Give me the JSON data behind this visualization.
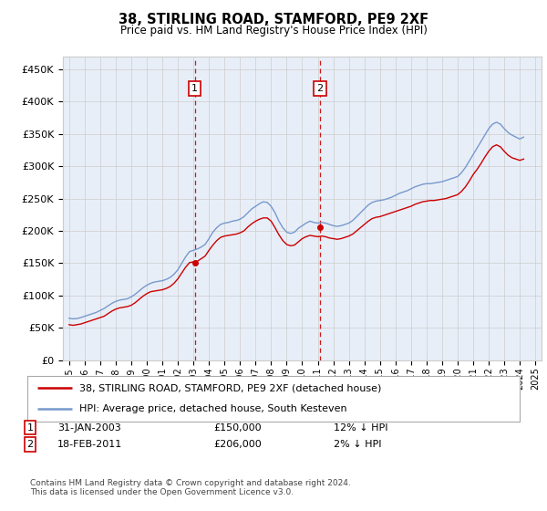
{
  "title": "38, STIRLING ROAD, STAMFORD, PE9 2XF",
  "subtitle": "Price paid vs. HM Land Registry's House Price Index (HPI)",
  "ylabel_ticks": [
    "£0",
    "£50K",
    "£100K",
    "£150K",
    "£200K",
    "£250K",
    "£300K",
    "£350K",
    "£400K",
    "£450K"
  ],
  "ytick_values": [
    0,
    50000,
    100000,
    150000,
    200000,
    250000,
    300000,
    350000,
    400000,
    450000
  ],
  "ylim": [
    0,
    470000
  ],
  "xlim_start": 1994.6,
  "xlim_end": 2025.4,
  "background_color": "#ffffff",
  "plot_bg_color": "#e8eef8",
  "grid_color": "#cccccc",
  "legend_label_red": "38, STIRLING ROAD, STAMFORD, PE9 2XF (detached house)",
  "legend_label_blue": "HPI: Average price, detached house, South Kesteven",
  "sale1_x": 2003.083,
  "sale1_y": 150000,
  "sale1_label": "1",
  "sale2_x": 2011.13,
  "sale2_y": 206000,
  "sale2_label": "2",
  "footer": "Contains HM Land Registry data © Crown copyright and database right 2024.\nThis data is licensed under the Open Government Licence v3.0.",
  "hpi_color": "#7799cc",
  "price_color": "#cc0000",
  "marker_box_color": "#cc0000",
  "hpi_data": {
    "years": [
      1995.0,
      1995.25,
      1995.5,
      1995.75,
      1996.0,
      1996.25,
      1996.5,
      1996.75,
      1997.0,
      1997.25,
      1997.5,
      1997.75,
      1998.0,
      1998.25,
      1998.5,
      1998.75,
      1999.0,
      1999.25,
      1999.5,
      1999.75,
      2000.0,
      2000.25,
      2000.5,
      2000.75,
      2001.0,
      2001.25,
      2001.5,
      2001.75,
      2002.0,
      2002.25,
      2002.5,
      2002.75,
      2003.0,
      2003.25,
      2003.5,
      2003.75,
      2004.0,
      2004.25,
      2004.5,
      2004.75,
      2005.0,
      2005.25,
      2005.5,
      2005.75,
      2006.0,
      2006.25,
      2006.5,
      2006.75,
      2007.0,
      2007.25,
      2007.5,
      2007.75,
      2008.0,
      2008.25,
      2008.5,
      2008.75,
      2009.0,
      2009.25,
      2009.5,
      2009.75,
      2010.0,
      2010.25,
      2010.5,
      2010.75,
      2011.0,
      2011.25,
      2011.5,
      2011.75,
      2012.0,
      2012.25,
      2012.5,
      2012.75,
      2013.0,
      2013.25,
      2013.5,
      2013.75,
      2014.0,
      2014.25,
      2014.5,
      2014.75,
      2015.0,
      2015.25,
      2015.5,
      2015.75,
      2016.0,
      2016.25,
      2016.5,
      2016.75,
      2017.0,
      2017.25,
      2017.5,
      2017.75,
      2018.0,
      2018.25,
      2018.5,
      2018.75,
      2019.0,
      2019.25,
      2019.5,
      2019.75,
      2020.0,
      2020.25,
      2020.5,
      2020.75,
      2021.0,
      2021.25,
      2021.5,
      2021.75,
      2022.0,
      2022.25,
      2022.5,
      2022.75,
      2023.0,
      2023.25,
      2023.5,
      2023.75,
      2024.0,
      2024.25
    ],
    "values": [
      65000,
      64000,
      64500,
      66000,
      68000,
      70000,
      72000,
      74000,
      77000,
      80000,
      84000,
      88000,
      91000,
      93000,
      94000,
      95000,
      98000,
      102000,
      107000,
      112000,
      116000,
      119000,
      121000,
      122000,
      123000,
      125000,
      128000,
      133000,
      140000,
      150000,
      160000,
      168000,
      170000,
      172000,
      175000,
      179000,
      188000,
      198000,
      205000,
      210000,
      212000,
      213000,
      215000,
      216000,
      218000,
      222000,
      228000,
      234000,
      238000,
      242000,
      245000,
      244000,
      238000,
      228000,
      215000,
      205000,
      198000,
      196000,
      198000,
      204000,
      208000,
      212000,
      215000,
      213000,
      212000,
      213000,
      212000,
      210000,
      208000,
      207000,
      208000,
      210000,
      212000,
      216000,
      222000,
      228000,
      234000,
      240000,
      244000,
      246000,
      247000,
      248000,
      250000,
      252000,
      255000,
      258000,
      260000,
      262000,
      265000,
      268000,
      270000,
      272000,
      273000,
      273000,
      274000,
      275000,
      276000,
      278000,
      280000,
      282000,
      284000,
      290000,
      298000,
      308000,
      318000,
      328000,
      338000,
      348000,
      358000,
      365000,
      368000,
      365000,
      358000,
      352000,
      348000,
      345000,
      342000,
      345000
    ]
  },
  "price_data": {
    "years": [
      1995.0,
      1995.25,
      1995.5,
      1995.75,
      1996.0,
      1996.25,
      1996.5,
      1996.75,
      1997.0,
      1997.25,
      1997.5,
      1997.75,
      1998.0,
      1998.25,
      1998.5,
      1998.75,
      1999.0,
      1999.25,
      1999.5,
      1999.75,
      2000.0,
      2000.25,
      2000.5,
      2000.75,
      2001.0,
      2001.25,
      2001.5,
      2001.75,
      2002.0,
      2002.25,
      2002.5,
      2002.75,
      2003.0,
      2003.25,
      2003.5,
      2003.75,
      2004.0,
      2004.25,
      2004.5,
      2004.75,
      2005.0,
      2005.25,
      2005.5,
      2005.75,
      2006.0,
      2006.25,
      2006.5,
      2006.75,
      2007.0,
      2007.25,
      2007.5,
      2007.75,
      2008.0,
      2008.25,
      2008.5,
      2008.75,
      2009.0,
      2009.25,
      2009.5,
      2009.75,
      2010.0,
      2010.25,
      2010.5,
      2010.75,
      2011.0,
      2011.25,
      2011.5,
      2011.75,
      2012.0,
      2012.25,
      2012.5,
      2012.75,
      2013.0,
      2013.25,
      2013.5,
      2013.75,
      2014.0,
      2014.25,
      2014.5,
      2014.75,
      2015.0,
      2015.25,
      2015.5,
      2015.75,
      2016.0,
      2016.25,
      2016.5,
      2016.75,
      2017.0,
      2017.25,
      2017.5,
      2017.75,
      2018.0,
      2018.25,
      2018.5,
      2018.75,
      2019.0,
      2019.25,
      2019.5,
      2019.75,
      2020.0,
      2020.25,
      2020.5,
      2020.75,
      2021.0,
      2021.25,
      2021.5,
      2021.75,
      2022.0,
      2022.25,
      2022.5,
      2022.75,
      2023.0,
      2023.25,
      2023.5,
      2023.75,
      2024.0,
      2024.25
    ],
    "values": [
      55000,
      54000,
      55000,
      56000,
      58000,
      60000,
      62000,
      64000,
      66000,
      68000,
      72000,
      76000,
      79000,
      81000,
      82000,
      83000,
      85000,
      89000,
      94000,
      99000,
      103000,
      106000,
      107000,
      108000,
      109000,
      111000,
      114000,
      119000,
      126000,
      135000,
      144000,
      151000,
      152000,
      153000,
      157000,
      161000,
      170000,
      178000,
      185000,
      190000,
      192000,
      193000,
      194000,
      195000,
      197000,
      200000,
      206000,
      211000,
      215000,
      218000,
      220000,
      220000,
      215000,
      205000,
      194000,
      185000,
      179000,
      177000,
      178000,
      183000,
      188000,
      191000,
      193000,
      192000,
      191000,
      192000,
      191000,
      189000,
      188000,
      187000,
      188000,
      190000,
      192000,
      195000,
      200000,
      205000,
      210000,
      215000,
      219000,
      221000,
      222000,
      224000,
      226000,
      228000,
      230000,
      232000,
      234000,
      236000,
      238000,
      241000,
      243000,
      245000,
      246000,
      247000,
      247000,
      248000,
      249000,
      250000,
      252000,
      254000,
      256000,
      261000,
      268000,
      277000,
      287000,
      295000,
      304000,
      314000,
      323000,
      330000,
      333000,
      330000,
      323000,
      317000,
      313000,
      311000,
      309000,
      311000
    ]
  },
  "xtick_years": [
    1995,
    1996,
    1997,
    1998,
    1999,
    2000,
    2001,
    2002,
    2003,
    2004,
    2005,
    2006,
    2007,
    2008,
    2009,
    2010,
    2011,
    2012,
    2013,
    2014,
    2015,
    2016,
    2017,
    2018,
    2019,
    2020,
    2021,
    2022,
    2023,
    2024,
    2025
  ]
}
